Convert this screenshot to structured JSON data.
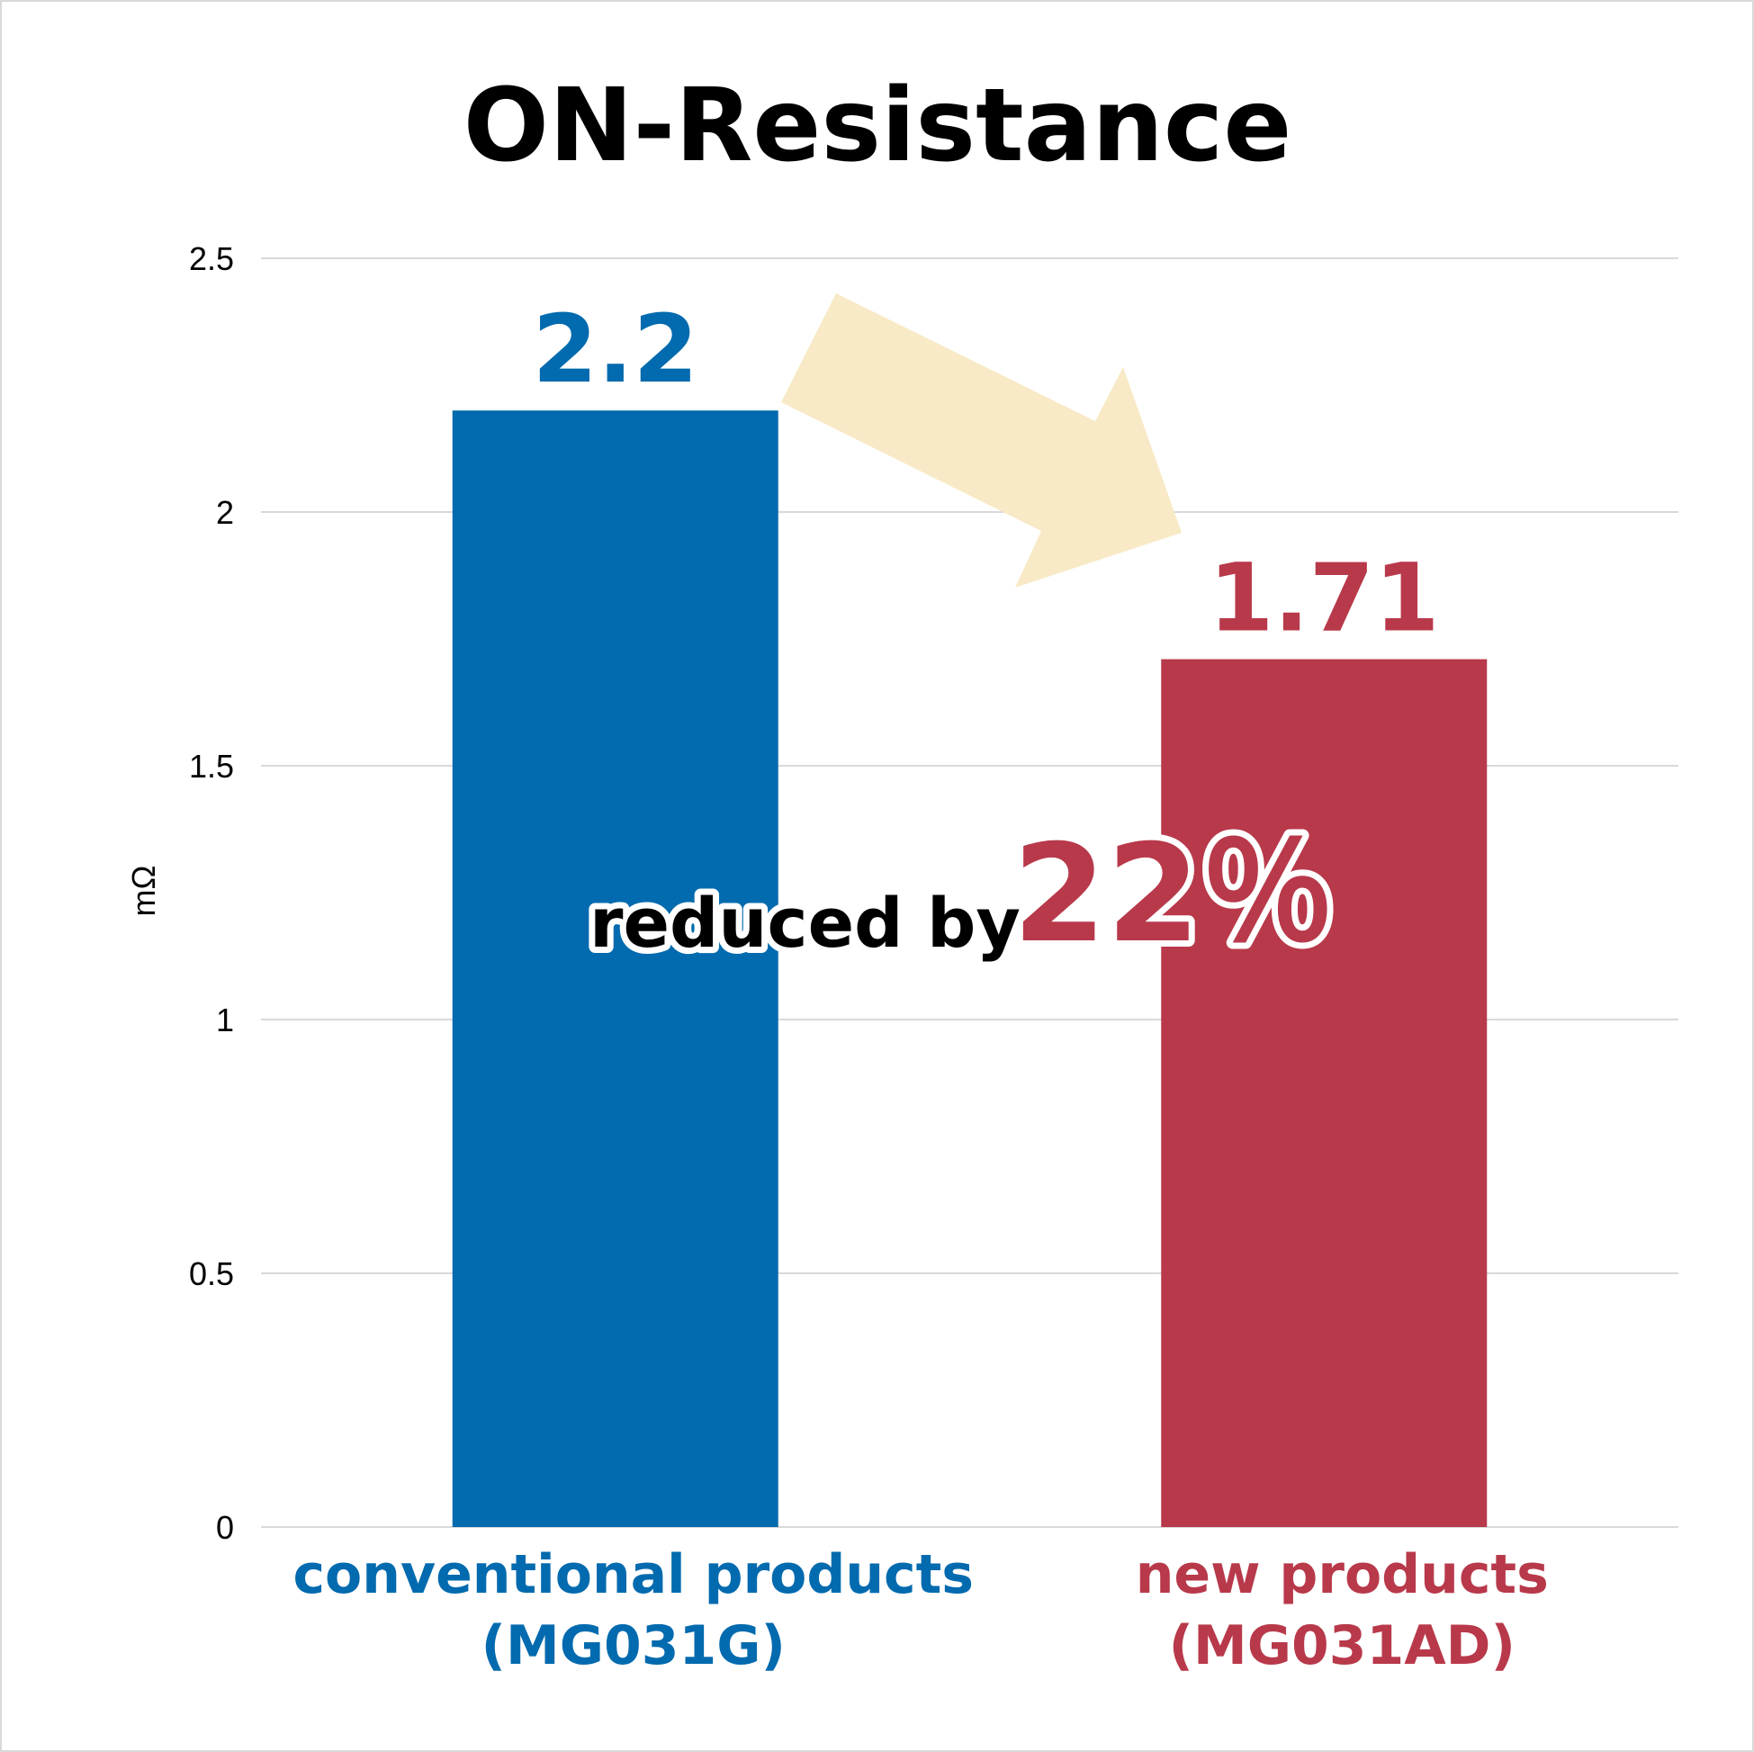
{
  "chart_data": {
    "type": "bar",
    "title": "ON-Resistance",
    "ylabel": "mΩ",
    "xlabel": "",
    "ylim": [
      0,
      2.5
    ],
    "yticks": [
      "0",
      "0.5",
      "1",
      "1.5",
      "2",
      "2.5"
    ],
    "ytick_values": [
      0,
      0.5,
      1,
      1.5,
      2,
      2.5
    ],
    "grid": true,
    "categories": [
      {
        "line1": "conventional products",
        "line2": "(MG031G)",
        "value": 2.2,
        "value_label": "2.2",
        "color": "#026aae"
      },
      {
        "line1": "new products",
        "line2": "(MG031AD)",
        "value": 1.71,
        "value_label": "1.71",
        "color": "#b8394a"
      }
    ],
    "annotation": {
      "prefix": "reduced by",
      "highlight": "22％",
      "highlight_color": "#b8394a",
      "arrow_color": "#f8eac6"
    }
  }
}
